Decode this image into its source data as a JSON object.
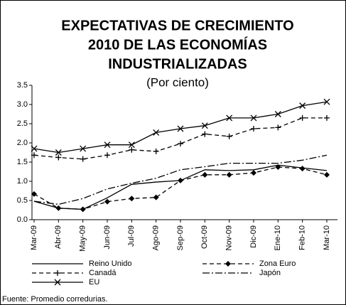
{
  "chart_data": {
    "type": "line",
    "title": [
      "EXPECTATIVAS DE CRECIMIENTO",
      "2010 DE LAS ECONOMÍAS",
      "INDUSTRIALIZADAS"
    ],
    "subtitle": "(Por ciento)",
    "source": "Fuente: Promedio corredurias.",
    "categories": [
      "Mar-09",
      "Abr-09",
      "May-09",
      "Jun-09",
      "Jul-09",
      "Ago-09",
      "Sep-09",
      "Oct-09",
      "Nov-09",
      "Dic-09",
      "Ene-10",
      "Feb-10",
      "Mar-10"
    ],
    "ylim": [
      0,
      3.5
    ],
    "yticks": [
      {
        "value": 0,
        "label": "0.0"
      },
      {
        "value": 0.5,
        "label": "0.5"
      },
      {
        "value": 1,
        "label": "1.0"
      },
      {
        "value": 1.5,
        "label": "1.5"
      },
      {
        "value": 2,
        "label": "2.0"
      },
      {
        "value": 2.5,
        "label": "2.5"
      },
      {
        "value": 3,
        "label": "3.0"
      },
      {
        "value": 3.5,
        "label": "3.5"
      }
    ],
    "series": [
      {
        "name": "Reino Unido",
        "color": "#000000",
        "style": "solid",
        "marker": "none",
        "values": [
          0.48,
          0.3,
          0.27,
          0.57,
          0.92,
          0.98,
          1.02,
          1.3,
          1.28,
          1.3,
          1.42,
          1.35,
          1.28
        ]
      },
      {
        "name": "Zona Euro",
        "color": "#000000",
        "style": "dashed",
        "marker": "diamond",
        "values": [
          0.67,
          0.3,
          0.27,
          0.47,
          0.55,
          0.58,
          1.02,
          1.17,
          1.17,
          1.22,
          1.37,
          1.33,
          1.17
        ]
      },
      {
        "name": "Canadá",
        "color": "#000000",
        "style": "dashed",
        "marker": "plus",
        "values": [
          1.68,
          1.62,
          1.58,
          1.68,
          1.82,
          1.78,
          1.98,
          2.23,
          2.17,
          2.37,
          2.4,
          2.65,
          2.65
        ]
      },
      {
        "name": "Japón",
        "color": "#000000",
        "style": "dashdot",
        "marker": "none",
        "values": [
          0.48,
          0.4,
          0.55,
          0.8,
          0.95,
          1.08,
          1.3,
          1.38,
          1.47,
          1.47,
          1.47,
          1.55,
          1.68
        ]
      },
      {
        "name": "EU",
        "color": "#000000",
        "style": "solid",
        "marker": "x",
        "values": [
          1.85,
          1.75,
          1.85,
          1.95,
          1.95,
          2.27,
          2.37,
          2.45,
          2.65,
          2.65,
          2.75,
          2.97,
          3.07
        ]
      }
    ]
  }
}
